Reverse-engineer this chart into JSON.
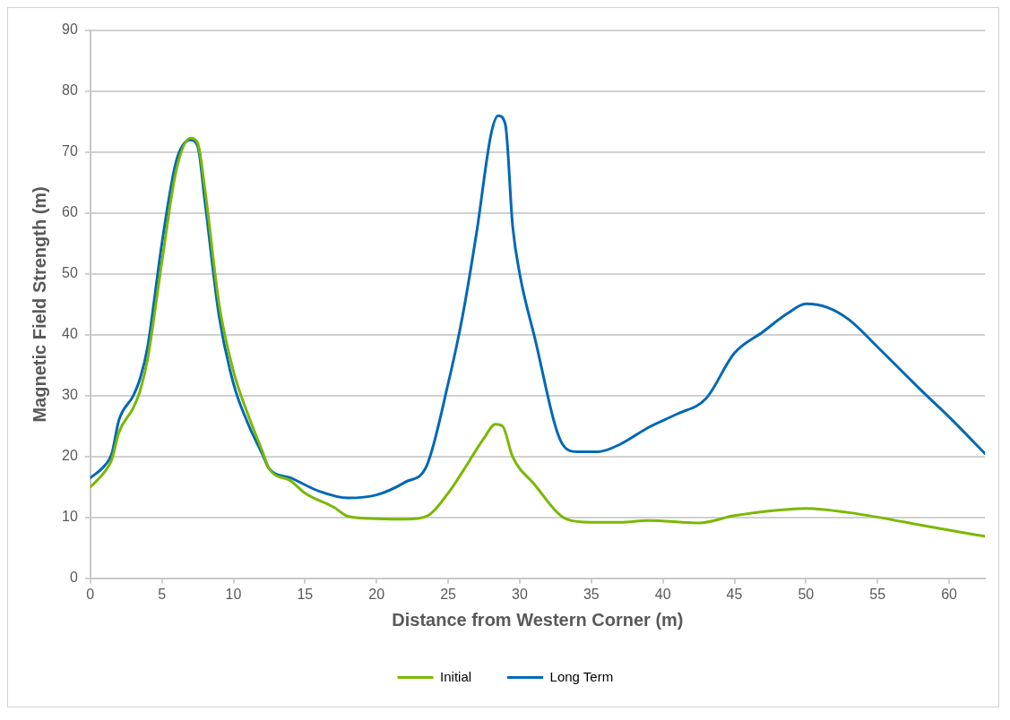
{
  "chart_data": {
    "type": "line",
    "xlabel": "Distance from Western Corner (m)",
    "ylabel": "Magnetic Field Strength (m)",
    "xlim": [
      0,
      62.5
    ],
    "xticks": [
      0,
      5,
      10,
      15,
      20,
      25,
      30,
      35,
      40,
      45,
      50,
      55,
      60
    ],
    "ylim": [
      0,
      90
    ],
    "yticks": [
      0,
      10,
      20,
      30,
      40,
      50,
      60,
      70,
      80,
      90
    ],
    "grid": "y",
    "legend": "bottom",
    "marker": "none",
    "line_style": "solid",
    "series": [
      {
        "name": "Initial",
        "color": "#7ab800",
        "x": [
          0,
          1,
          1.5,
          2,
          3,
          3.5,
          4,
          5,
          6,
          7,
          7.5,
          8,
          9,
          10,
          11,
          12,
          12.5,
          14,
          15,
          17,
          18,
          20,
          22,
          23.5,
          25,
          26,
          27.5,
          28.3,
          28.8,
          29.5,
          31,
          33.3,
          35,
          37,
          39,
          42.5,
          45,
          48,
          50,
          53,
          57,
          60,
          62.5
        ],
        "values": [
          15,
          17.5,
          19.5,
          24,
          28,
          31,
          36,
          52,
          67,
          72.3,
          71.5,
          64,
          45,
          34,
          27,
          21,
          18,
          16,
          14,
          11.7,
          10.2,
          9.8,
          9.7,
          10.2,
          14,
          17.5,
          23,
          25.3,
          25,
          20,
          15.5,
          9.7,
          9.2,
          9.2,
          9.5,
          9.1,
          10.3,
          11.2,
          11.5,
          10.8,
          9.2,
          7.9,
          6.9
        ]
      },
      {
        "name": "Long Term",
        "color": "#0068b5",
        "x": [
          0,
          1,
          1.5,
          2,
          3,
          3.5,
          4,
          5,
          6,
          7,
          7.5,
          8,
          9,
          10,
          11,
          12,
          12.5,
          14,
          16,
          18,
          20,
          22,
          23.5,
          25,
          26,
          27,
          28,
          28.5,
          29,
          29.5,
          30,
          31,
          33,
          34,
          35.5,
          37,
          39,
          41,
          43,
          45,
          47,
          48.7,
          50,
          51.5,
          53,
          55,
          58,
          60,
          62.5
        ],
        "values": [
          16.5,
          18.5,
          20.5,
          26,
          30,
          33,
          38,
          55,
          68.5,
          72,
          71,
          62,
          43,
          32,
          25.5,
          20.5,
          18,
          16.5,
          14.3,
          13.2,
          13.7,
          15.8,
          18.5,
          32,
          43,
          57,
          73,
          76,
          74.5,
          58,
          50,
          40,
          22,
          20.8,
          20.8,
          22,
          24.8,
          27,
          29.5,
          37,
          40.5,
          43.5,
          45.1,
          44.5,
          42.5,
          38,
          31,
          26.5,
          20.5
        ]
      }
    ]
  }
}
